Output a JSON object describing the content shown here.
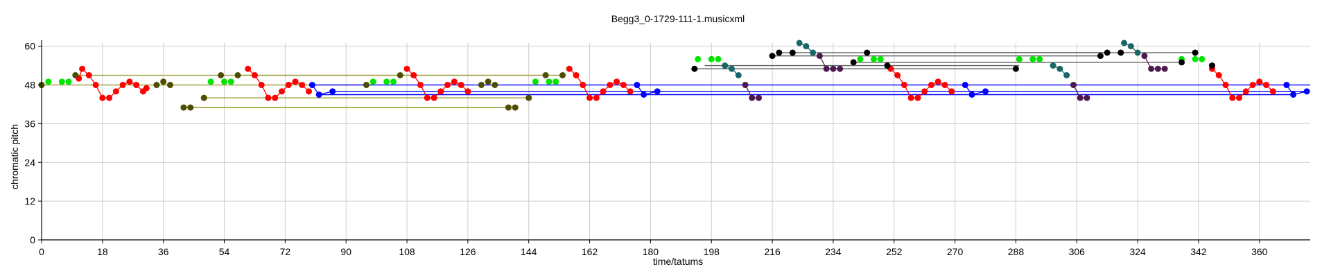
{
  "chart_data": {
    "type": "scatter",
    "title": "Begg3_0-1729-111-1.musicxml",
    "xlabel": "time/tatums",
    "ylabel": "chromatic pitch",
    "xlim": [
      0,
      375
    ],
    "ylim": [
      0,
      61
    ],
    "x_ticks": [
      "0",
      "18",
      "36",
      "54",
      "72",
      "90",
      "108",
      "126",
      "144",
      "162",
      "180",
      "198",
      "216",
      "234",
      "252",
      "270",
      "288",
      "306",
      "324",
      "342",
      "360"
    ],
    "y_ticks": [
      "0",
      "12",
      "24",
      "36",
      "48",
      "60"
    ],
    "grid": true,
    "colors": {
      "red": "#ff0000",
      "blue": "#0000ff",
      "green": "#00e600",
      "olive": "#4d4d00",
      "teal": "#1a6666",
      "purple": "#4d1a4d",
      "black": "#000000",
      "gridline": "#cccccc",
      "olive_link": "#999933",
      "gray_link": "#666666"
    },
    "series": [
      {
        "color": "red",
        "connected": true,
        "points": [
          [
            11,
            50
          ],
          [
            12,
            53
          ],
          [
            14,
            51
          ],
          [
            16,
            48
          ],
          [
            18,
            44
          ],
          [
            20,
            44
          ],
          [
            22,
            46
          ],
          [
            24,
            48
          ],
          [
            26,
            49
          ],
          [
            28,
            48
          ],
          [
            30,
            46
          ],
          [
            31,
            47
          ],
          [
            61,
            53
          ],
          [
            63,
            51
          ],
          [
            65,
            48
          ],
          [
            67,
            44
          ],
          [
            69,
            44
          ],
          [
            71,
            46
          ],
          [
            73,
            48
          ],
          [
            75,
            49
          ],
          [
            77,
            48
          ],
          [
            79,
            46
          ],
          [
            108,
            53
          ],
          [
            110,
            51
          ],
          [
            112,
            48
          ],
          [
            114,
            44
          ],
          [
            116,
            44
          ],
          [
            118,
            46
          ],
          [
            120,
            48
          ],
          [
            122,
            49
          ],
          [
            124,
            48
          ],
          [
            126,
            46
          ],
          [
            156,
            53
          ],
          [
            158,
            51
          ],
          [
            160,
            48
          ],
          [
            162,
            44
          ],
          [
            164,
            44
          ],
          [
            166,
            46
          ],
          [
            168,
            48
          ],
          [
            170,
            49
          ],
          [
            172,
            48
          ],
          [
            174,
            46
          ],
          [
            251,
            53
          ],
          [
            253,
            51
          ],
          [
            255,
            48
          ],
          [
            257,
            44
          ],
          [
            259,
            44
          ],
          [
            261,
            46
          ],
          [
            263,
            48
          ],
          [
            265,
            49
          ],
          [
            267,
            48
          ],
          [
            269,
            46
          ],
          [
            346,
            53
          ],
          [
            348,
            51
          ],
          [
            350,
            48
          ],
          [
            352,
            44
          ],
          [
            354,
            44
          ],
          [
            356,
            46
          ],
          [
            358,
            48
          ],
          [
            360,
            49
          ],
          [
            362,
            48
          ],
          [
            364,
            46
          ]
        ]
      },
      {
        "color": "blue",
        "connected": true,
        "points": [
          [
            80,
            48
          ],
          [
            82,
            45
          ],
          [
            86,
            46
          ],
          [
            176,
            48
          ],
          [
            178,
            45
          ],
          [
            182,
            46
          ],
          [
            273,
            48
          ],
          [
            275,
            45
          ],
          [
            279,
            46
          ],
          [
            368,
            48
          ],
          [
            370,
            45
          ],
          [
            374,
            46
          ]
        ]
      },
      {
        "color": "green",
        "connected": false,
        "points": [
          [
            0,
            48
          ],
          [
            2,
            49
          ],
          [
            6,
            49
          ],
          [
            8,
            49
          ],
          [
            50,
            49
          ],
          [
            54,
            49
          ],
          [
            56,
            49
          ],
          [
            98,
            49
          ],
          [
            102,
            49
          ],
          [
            104,
            49
          ],
          [
            146,
            49
          ],
          [
            150,
            49
          ],
          [
            152,
            49
          ],
          [
            194,
            56
          ],
          [
            198,
            56
          ],
          [
            200,
            56
          ],
          [
            242,
            56
          ],
          [
            246,
            56
          ],
          [
            248,
            56
          ],
          [
            289,
            56
          ],
          [
            293,
            56
          ],
          [
            295,
            56
          ],
          [
            337,
            56
          ],
          [
            341,
            56
          ],
          [
            343,
            56
          ]
        ]
      },
      {
        "color": "olive",
        "connected": false,
        "points": [
          [
            0,
            48
          ],
          [
            10,
            51
          ],
          [
            34,
            48
          ],
          [
            36,
            49
          ],
          [
            38,
            48
          ],
          [
            42,
            41
          ],
          [
            44,
            41
          ],
          [
            48,
            44
          ],
          [
            53,
            51
          ],
          [
            58,
            51
          ],
          [
            96,
            48
          ],
          [
            106,
            51
          ],
          [
            130,
            48
          ],
          [
            132,
            49
          ],
          [
            134,
            48
          ],
          [
            138,
            41
          ],
          [
            140,
            41
          ],
          [
            144,
            44
          ],
          [
            149,
            51
          ],
          [
            154,
            51
          ]
        ]
      },
      {
        "color": "teal",
        "connected": true,
        "points": [
          [
            202,
            54
          ],
          [
            204,
            53
          ],
          [
            206,
            51
          ],
          [
            224,
            61
          ],
          [
            226,
            60
          ],
          [
            228,
            58
          ],
          [
            299,
            54
          ],
          [
            301,
            53
          ],
          [
            303,
            51
          ],
          [
            320,
            61
          ],
          [
            322,
            60
          ],
          [
            324,
            58
          ]
        ]
      },
      {
        "color": "purple",
        "connected": true,
        "points": [
          [
            208,
            48
          ],
          [
            210,
            44
          ],
          [
            212,
            44
          ],
          [
            230,
            57
          ],
          [
            232,
            53
          ],
          [
            234,
            53
          ],
          [
            236,
            53
          ],
          [
            305,
            48
          ],
          [
            307,
            44
          ],
          [
            309,
            44
          ],
          [
            326,
            57
          ],
          [
            328,
            53
          ],
          [
            330,
            53
          ],
          [
            332,
            53
          ]
        ]
      },
      {
        "color": "black",
        "connected": false,
        "points": [
          [
            193,
            53
          ],
          [
            216,
            57
          ],
          [
            218,
            58
          ],
          [
            222,
            58
          ],
          [
            240,
            55
          ],
          [
            244,
            58
          ],
          [
            250,
            54
          ],
          [
            288,
            53
          ],
          [
            313,
            57
          ],
          [
            315,
            58
          ],
          [
            319,
            58
          ],
          [
            337,
            55
          ],
          [
            341,
            58
          ],
          [
            346,
            54
          ]
        ]
      }
    ],
    "links": [
      {
        "color": "olive_link",
        "from": [
          0,
          48
        ],
        "to": [
          96,
          48
        ]
      },
      {
        "color": "olive_link",
        "from": [
          10,
          51
        ],
        "to": [
          149,
          51
        ]
      },
      {
        "color": "olive_link",
        "from": [
          42,
          41
        ],
        "to": [
          138,
          41
        ]
      },
      {
        "color": "olive_link",
        "from": [
          48,
          44
        ],
        "to": [
          144,
          44
        ]
      },
      {
        "color": "olive_link",
        "from": [
          58,
          51
        ],
        "to": [
          154,
          51
        ]
      },
      {
        "color": "blue",
        "from": [
          80,
          48
        ],
        "to": [
          375,
          48
        ]
      },
      {
        "color": "blue",
        "from": [
          82,
          45
        ],
        "to": [
          370,
          45
        ]
      },
      {
        "color": "blue",
        "from": [
          86,
          46
        ],
        "to": [
          374,
          46
        ]
      },
      {
        "color": "gray_link",
        "from": [
          193,
          53
        ],
        "to": [
          288,
          53
        ]
      },
      {
        "color": "gray_link",
        "from": [
          196,
          54
        ],
        "to": [
          289,
          54
        ]
      },
      {
        "color": "gray_link",
        "from": [
          216,
          57
        ],
        "to": [
          313,
          57
        ]
      },
      {
        "color": "gray_link",
        "from": [
          218,
          58
        ],
        "to": [
          315,
          58
        ]
      },
      {
        "color": "gray_link",
        "from": [
          240,
          55
        ],
        "to": [
          337,
          55
        ]
      },
      {
        "color": "gray_link",
        "from": [
          244,
          58
        ],
        "to": [
          341,
          58
        ]
      }
    ]
  }
}
